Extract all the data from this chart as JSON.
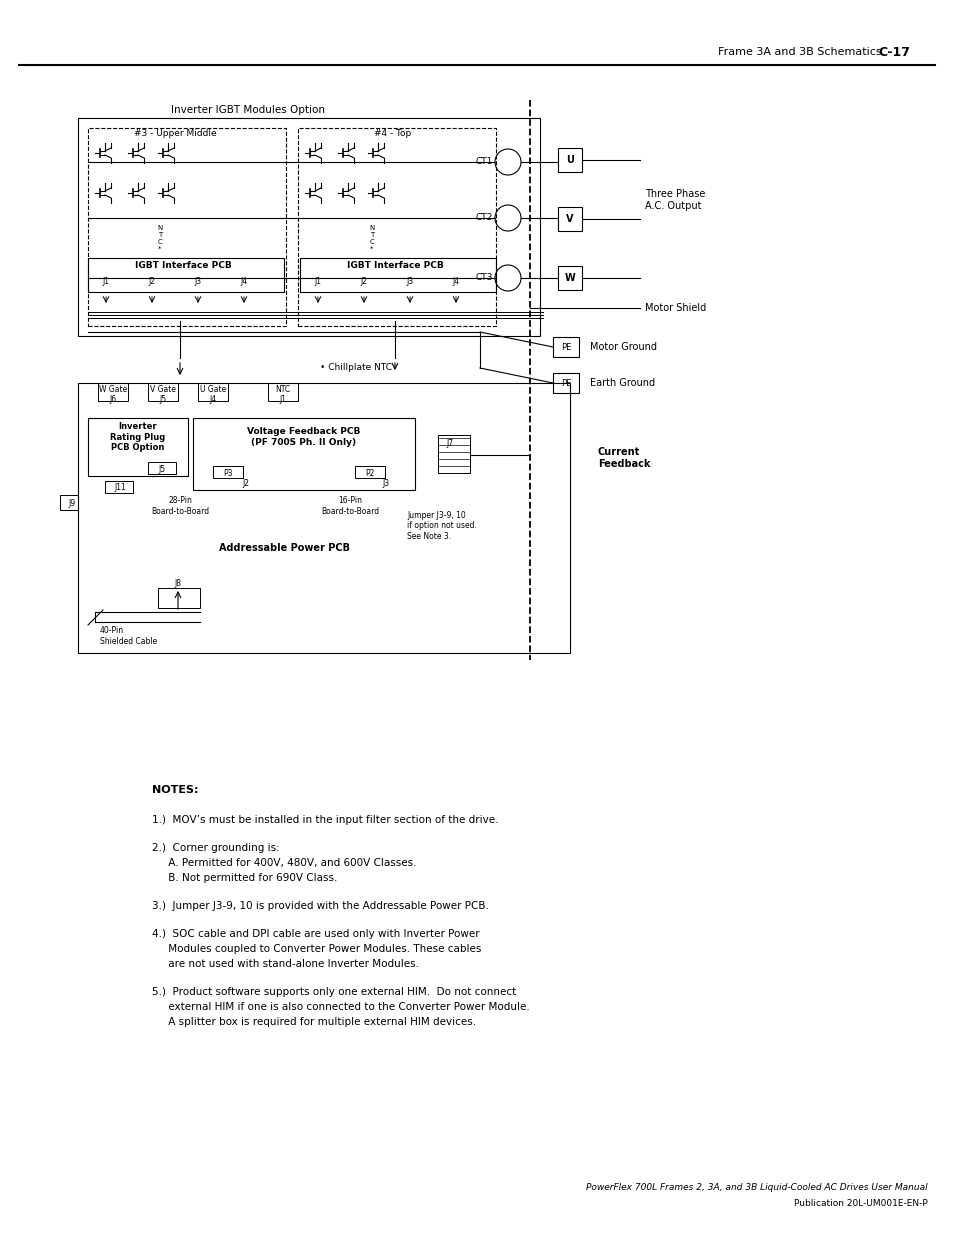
{
  "page_header_text": "Frame 3A and 3B Schematics",
  "page_number": "C-17",
  "diagram_title": "Inverter IGBT Modules Option",
  "notes_title": "NOTES:",
  "footer_line1": "PowerFlex 700L Frames 2, 3A, and 3B Liquid-Cooled AC Drives User Manual",
  "footer_line2": "Publication 20L-UM001E-EN-P",
  "bg_color": "#ffffff",
  "text_color": "#000000"
}
